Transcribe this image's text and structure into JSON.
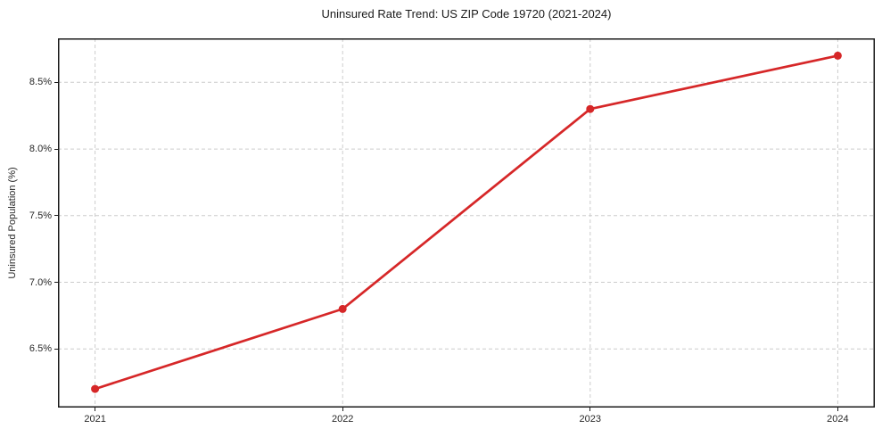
{
  "figure": {
    "background": "#ffffff"
  },
  "chart_data": {
    "type": "line",
    "title": "Uninsured Rate Trend: US ZIP Code 19720 (2021-2024)",
    "xlabel": "",
    "ylabel": "Uninsured Population (%)",
    "x": [
      2021,
      2022,
      2023,
      2024
    ],
    "categories": [
      "2021",
      "2022",
      "2023",
      "2024"
    ],
    "series": [
      {
        "name": "Uninsured Population (%)",
        "values": [
          6.2,
          6.8,
          8.3,
          8.7
        ]
      }
    ],
    "xlim": [
      2020.85,
      2024.15
    ],
    "ylim": [
      6.06,
      8.83
    ],
    "xticks": [
      2021,
      2022,
      2023,
      2024
    ],
    "xtick_labels": [
      "2021",
      "2022",
      "2023",
      "2024"
    ],
    "yticks": [
      6.5,
      7.0,
      7.5,
      8.0,
      8.5
    ],
    "ytick_labels": [
      "6.5%",
      "7.0%",
      "7.5%",
      "8.0%",
      "8.5%"
    ],
    "grid": true,
    "grid_style": "dashed",
    "legend": false,
    "marker": "circle",
    "colors": {
      "line": "#d62728",
      "marker": "#d62728",
      "grid": "#cccccc",
      "frame": "#1a1a1a",
      "text": "#262626",
      "background": "#ffffff"
    }
  }
}
